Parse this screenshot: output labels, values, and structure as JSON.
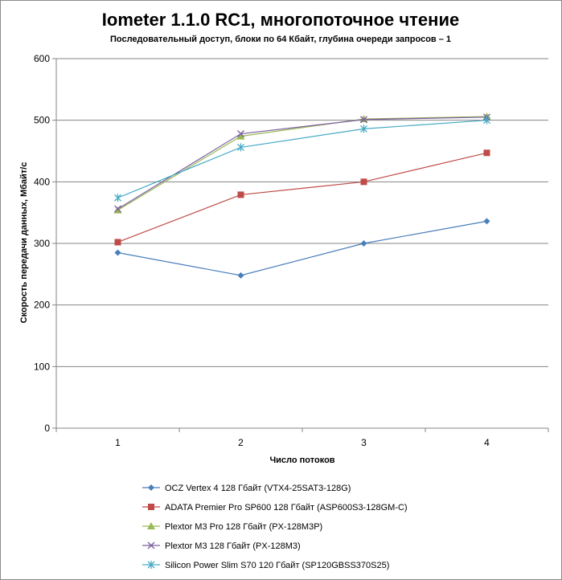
{
  "chart_data": {
    "type": "line",
    "title": "Iometer 1.1.0 RC1, многопоточное чтение",
    "subtitle": "Последовательный  доступ, блоки  по 64 Кбайт,  глубина очереди запросов  – 1",
    "xlabel": "Число  потоков",
    "ylabel": "Скорость  передачи данных, Мбайт/с",
    "categories": [
      "1",
      "2",
      "3",
      "4"
    ],
    "ylim": [
      0,
      600
    ],
    "yticks": [
      "0",
      "100",
      "200",
      "300",
      "400",
      "500",
      "600"
    ],
    "grid": "horizontal",
    "legend_position": "bottom",
    "series": [
      {
        "name": "OCZ Vertex  4 128 Гбайт (VTX4-25SAT3-128G)",
        "values": [
          285,
          248,
          300,
          336
        ],
        "color": "#4a7ebb",
        "marker": "diamond"
      },
      {
        "name": "ADATA  Premier Pro SP600 128 Гбайт (ASP600S3-128GM-C)",
        "values": [
          302,
          379,
          400,
          447
        ],
        "color": "#be4b48",
        "marker": "square"
      },
      {
        "name": "Plextor M3 Pro 128 Гбайт (PX-128M3P)",
        "values": [
          354,
          474,
          502,
          506
        ],
        "color": "#98b954",
        "marker": "triangle"
      },
      {
        "name": "Plextor M3 128 Гбайт (PX-128M3)",
        "values": [
          356,
          478,
          501,
          505
        ],
        "color": "#7d60a0",
        "marker": "x"
      },
      {
        "name": "Silicon Power Slim S70 120 Гбайт (SP120GBSS370S25)",
        "values": [
          374,
          456,
          486,
          500
        ],
        "color": "#46aac5",
        "marker": "star"
      }
    ]
  }
}
